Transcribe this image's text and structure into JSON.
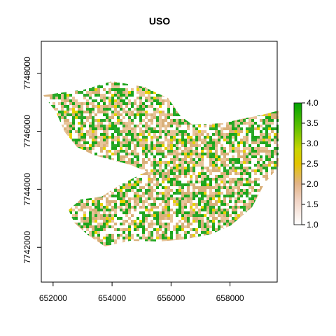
{
  "title": "USO",
  "x_axis": {
    "ticks": [
      652000,
      654000,
      656000,
      658000
    ],
    "labels": [
      "652000",
      "654000",
      "656000",
      "658000"
    ],
    "range": [
      651600,
      659600
    ]
  },
  "y_axis": {
    "ticks": [
      7742000,
      7744000,
      7746000,
      7748000
    ],
    "labels": [
      "7742000",
      "7744000",
      "7746000",
      "7748000"
    ],
    "range": [
      7740800,
      7749100
    ]
  },
  "legend": {
    "range": [
      1.0,
      4.0
    ],
    "ticks": [
      1.0,
      1.5,
      2.0,
      2.5,
      3.0,
      3.5,
      4.0
    ],
    "labels": [
      "1.0",
      "1.5",
      "2.0",
      "2.5",
      "3.0",
      "3.5",
      "4.0"
    ],
    "placement": "right"
  },
  "colors": {
    "class_1": "#ffffff",
    "class_2": "#e8c49a",
    "class_3": "#e6d200",
    "class_4": "#1aa61a",
    "tan": "#d9b07a",
    "green": "#2aa82a"
  }
}
